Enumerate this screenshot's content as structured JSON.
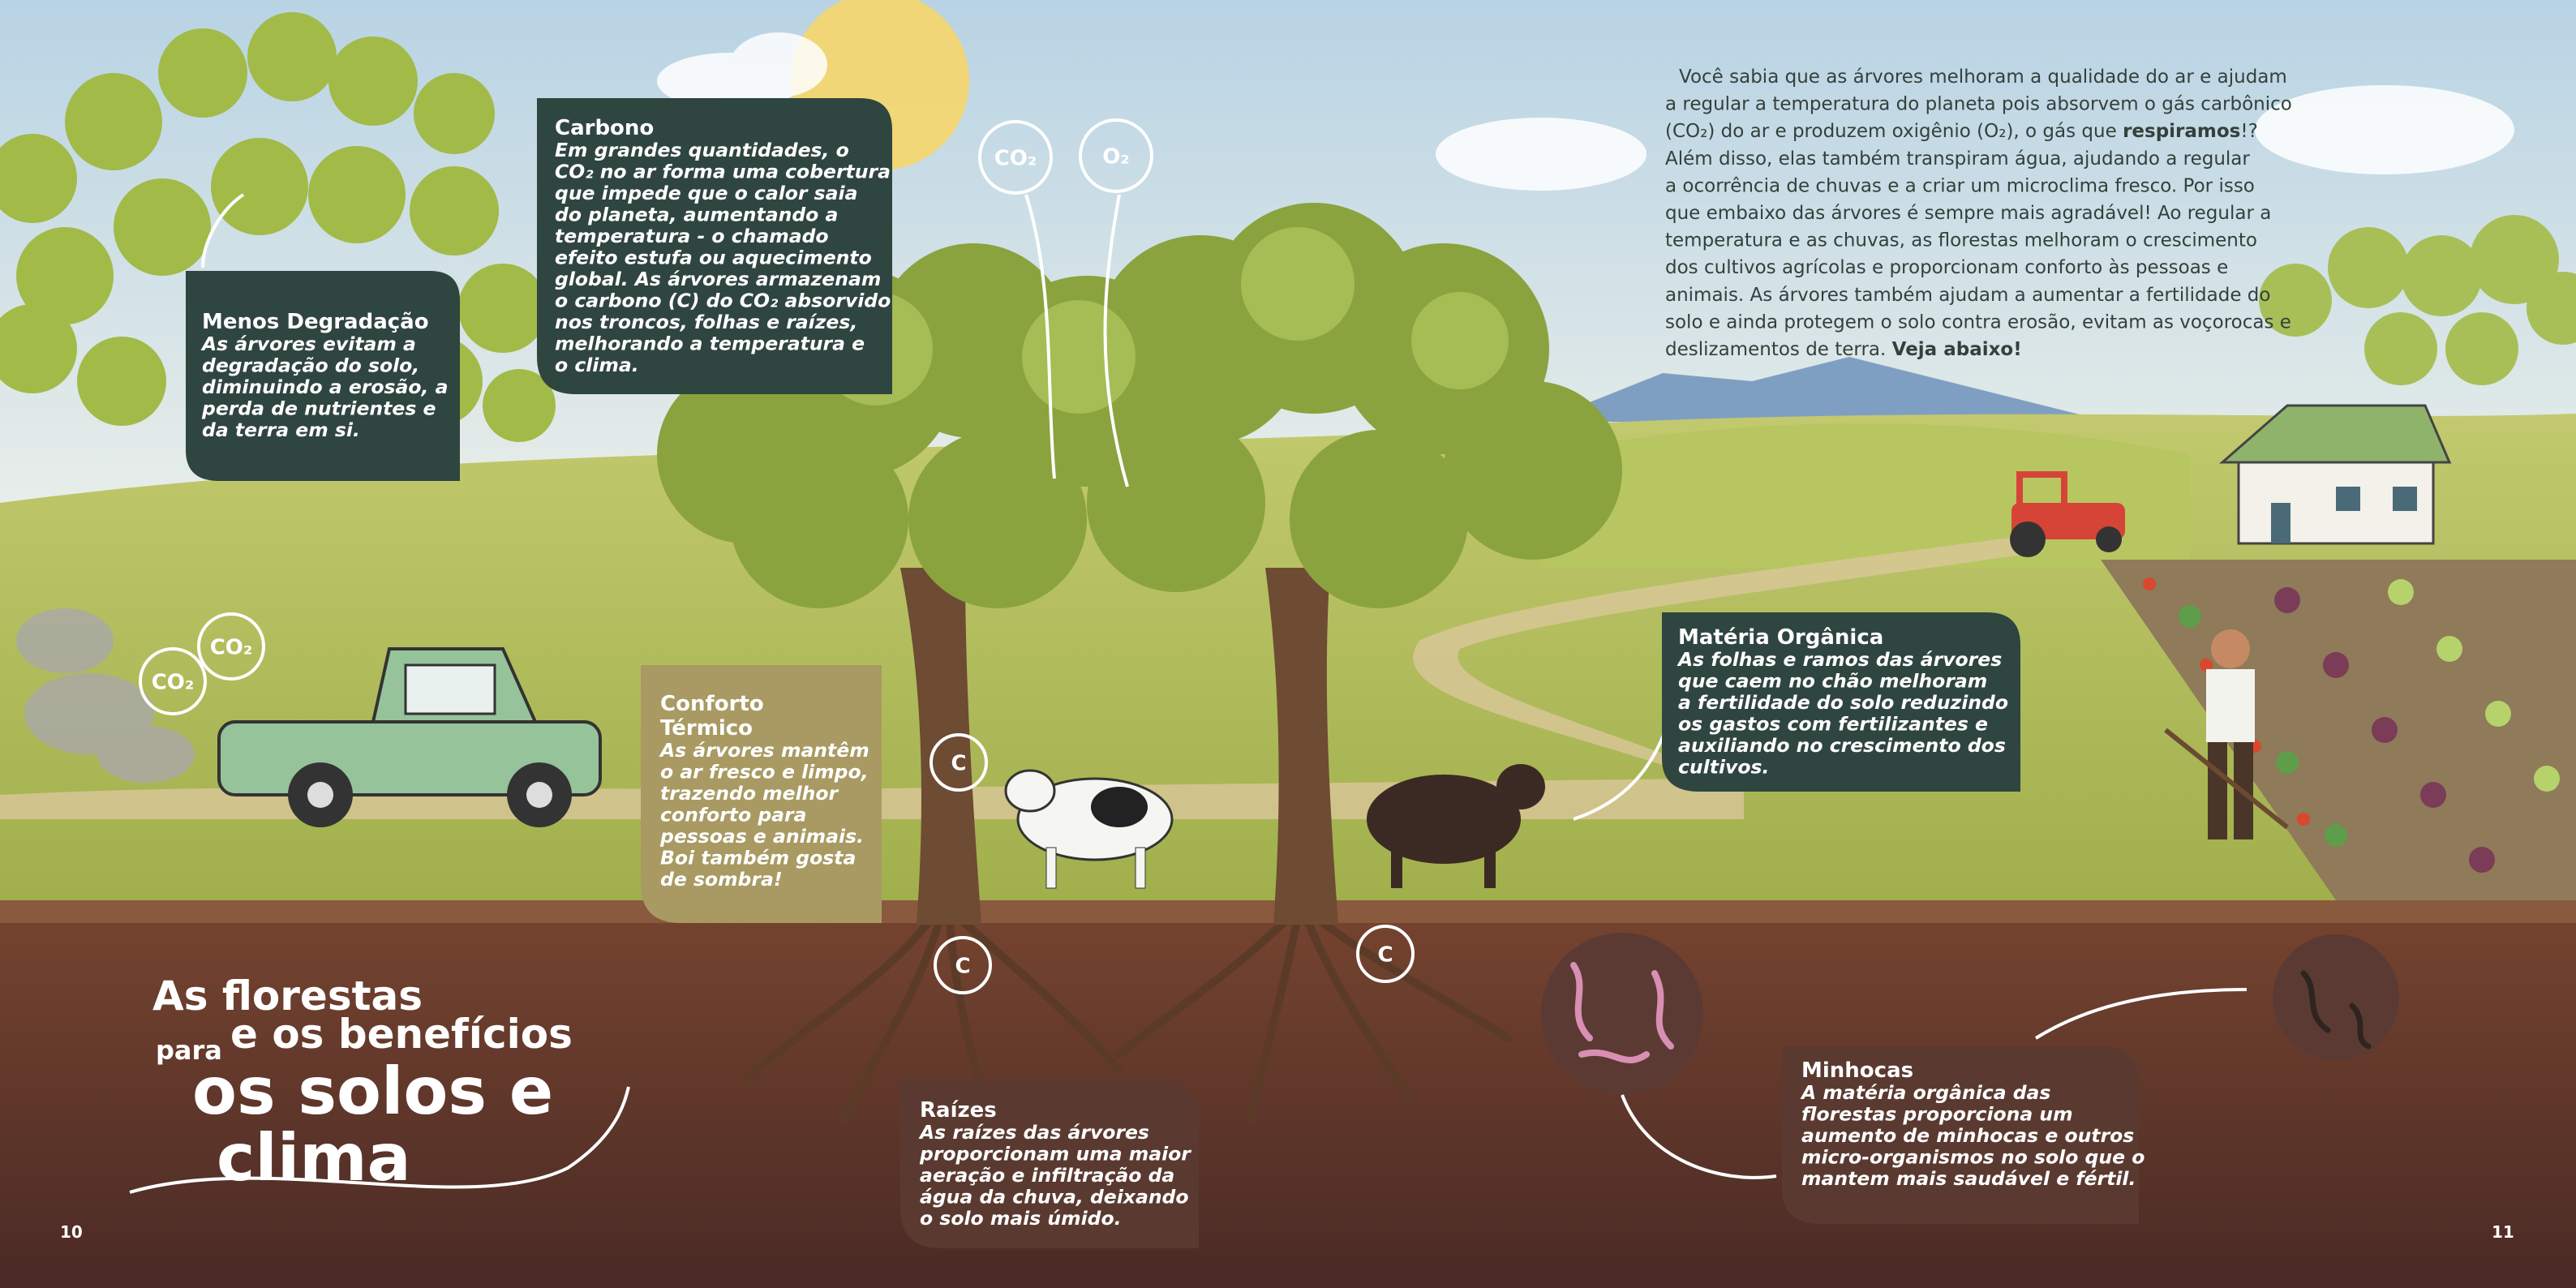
{
  "intro": {
    "lines": [
      [
        "Você sabia que as árvores melhoram a qualidade do ar e ajudam"
      ],
      [
        "a regular a temperatura do planeta pois absorvem o gás carbônico"
      ],
      [
        "(CO₂) do ar e produzem oxigênio (O₂), o gás que ",
        "respiramos",
        "!?"
      ],
      [
        "Além disso, elas também transpiram água, ajudando a regular"
      ],
      [
        "a ocorrência de chuvas e a criar um microclima fresco. Por isso"
      ],
      [
        "que embaixo das árvores é sempre mais agradável! Ao regular a"
      ],
      [
        "temperatura e as chuvas, as florestas melhoram o crescimento"
      ],
      [
        "dos cultivos agrícolas e proporcionam conforto às pessoas e"
      ],
      [
        "animais. As árvores também ajudam a aumentar a fertilidade do"
      ],
      [
        "solo e ainda protegem o solo contra erosão, evitam as voçorocas e"
      ],
      [
        "deslizamentos de terra.  ",
        "Veja abaixo!"
      ]
    ]
  },
  "title": {
    "line1": "As florestas",
    "small": "para",
    "line2": "e os benefícios",
    "line3": "os solos e",
    "line4": "clima"
  },
  "boxes": [
    {
      "title_lines": [
        "Menos Degradação"
      ],
      "body": [
        "As árvores evitam a",
        "degradação do solo,",
        "diminuindo a erosão, a",
        "perda de nutrientes e",
        "da terra em si."
      ]
    },
    {
      "title_lines": [
        "Carbono"
      ],
      "body": [
        "Em grandes quantidades, o",
        "CO₂ no ar forma uma cobertura",
        "que impede que o calor saia",
        "do planeta, aumentando a",
        "temperatura - o chamado",
        "efeito estufa ou aquecimento",
        "global. As árvores armazenam",
        "o carbono (C) do CO₂ absorvido",
        "nos troncos, folhas e raízes,",
        "melhorando a temperatura e",
        "o clima."
      ]
    },
    {
      "title_lines": [
        "Conforto",
        "Térmico"
      ],
      "body": [
        "As árvores mantêm",
        "o ar fresco e limpo,",
        "trazendo melhor",
        "conforto para",
        "pessoas e animais.",
        "Boi também gosta",
        "de sombra!"
      ]
    },
    {
      "title_lines": [
        "Matéria Orgânica"
      ],
      "body": [
        "As folhas e ramos das árvores",
        "que caem no chão melhoram",
        "a fertilidade do solo reduzindo",
        "os gastos com fertilizantes e",
        "auxiliando no crescimento dos",
        "cultivos."
      ]
    },
    {
      "title_lines": [
        "Raízes"
      ],
      "body": [
        "As raízes das árvores",
        "proporcionam uma maior",
        "aeração e infiltração da",
        "água da chuva, deixando",
        "o solo mais úmido."
      ]
    },
    {
      "title_lines": [
        "Minhocas"
      ],
      "body": [
        "A matéria orgânica das",
        "florestas proporciona um",
        "aumento de minhocas e outros",
        "micro-organismos no solo que o",
        "mantem mais saudável e fértil."
      ]
    }
  ],
  "bubbles": {
    "sky_co2": "CO₂",
    "sky_o2": "O₂",
    "truck_co2_a": "CO₂",
    "truck_co2_b": "CO₂",
    "carbon_trunk": "C",
    "carbon_root_left": "C",
    "carbon_root_right": "C"
  },
  "page_numbers": {
    "left": "10",
    "right": "11"
  }
}
